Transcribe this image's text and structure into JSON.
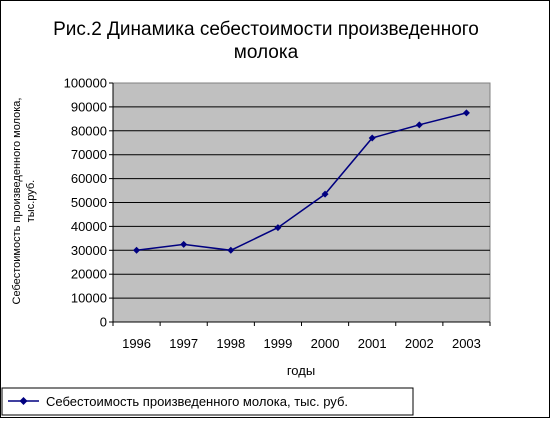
{
  "chart_data": {
    "type": "line",
    "title": [
      "Рис.2 Динамика себестоимости произведенного",
      "молока"
    ],
    "xlabel": "годы",
    "ylabel": [
      "Себестоимость произведенного молока,",
      "тыс.руб."
    ],
    "categories": [
      "1996",
      "1997",
      "1998",
      "1999",
      "2000",
      "2001",
      "2002",
      "2003"
    ],
    "y_ticks": [
      "0",
      "10000",
      "20000",
      "30000",
      "40000",
      "50000",
      "60000",
      "70000",
      "80000",
      "90000",
      "100000"
    ],
    "ylim": [
      0,
      100000
    ],
    "grid": true,
    "legend_position": "bottom",
    "series": [
      {
        "name": "Себестоимость произведенного молока, тыс. руб.",
        "values": [
          30000,
          32500,
          30000,
          39500,
          53500,
          77000,
          82500,
          87500
        ],
        "color": "#000080",
        "marker": "diamond"
      }
    ],
    "plot_background": "#c0c0c0"
  }
}
